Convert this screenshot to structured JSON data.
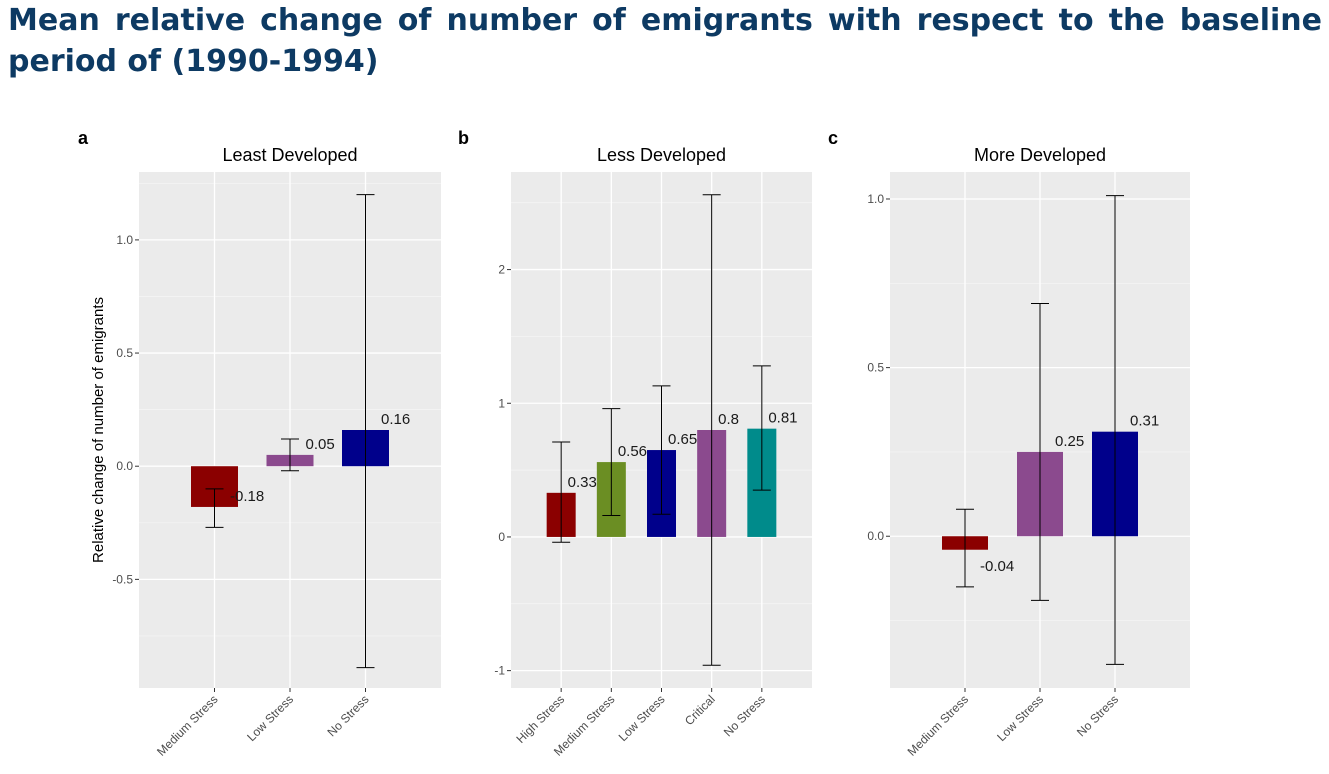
{
  "title": "Mean relative change of number of emigrants with respect to the baseline period of (1990-1994)",
  "chart_data": [
    {
      "type": "bar",
      "panel_tag": "a",
      "title": "Least Developed",
      "ylabel": "Relative change of number of emigrants",
      "xlabel": "",
      "ylim": [
        -0.98,
        1.3
      ],
      "yticks": [
        -0.5,
        0.0,
        0.5,
        1.0
      ],
      "ytick_labels": [
        "-0.5",
        "0.0",
        "0.5",
        "1.0"
      ],
      "grid": true,
      "categories": [
        "Medium Stress",
        "Low Stress",
        "No Stress"
      ],
      "values": [
        -0.18,
        0.05,
        0.16
      ],
      "data_labels": [
        "-0.18",
        "0.05",
        "0.16"
      ],
      "error_low": [
        -0.27,
        -0.02,
        -0.89
      ],
      "error_high": [
        -0.1,
        0.12,
        1.2
      ],
      "colors": [
        "#8b0000",
        "#8b4a8e",
        "#00008b"
      ]
    },
    {
      "type": "bar",
      "panel_tag": "b",
      "title": "Less Developed",
      "ylabel": "",
      "xlabel": "",
      "ylim": [
        -1.13,
        2.73
      ],
      "yticks": [
        -1,
        0,
        1,
        2
      ],
      "ytick_labels": [
        "-1",
        "0",
        "1",
        "2"
      ],
      "grid": true,
      "categories": [
        "High Stress",
        "Medium Stress",
        "Low Stress",
        "Critical",
        "No Stress"
      ],
      "values": [
        0.33,
        0.56,
        0.65,
        0.8,
        0.81
      ],
      "data_labels": [
        "0.33",
        "0.56",
        "0.65",
        "0.8",
        "0.81"
      ],
      "error_low": [
        -0.04,
        0.16,
        0.17,
        -0.96,
        0.35
      ],
      "error_high": [
        0.71,
        0.96,
        1.13,
        2.56,
        1.28
      ],
      "colors": [
        "#8b0000",
        "#6b8e23",
        "#00008b",
        "#8b4a8e",
        "#008b8b"
      ]
    },
    {
      "type": "bar",
      "panel_tag": "c",
      "title": "More Developed",
      "ylabel": "",
      "xlabel": "",
      "ylim": [
        -0.45,
        1.08
      ],
      "yticks": [
        0.0,
        0.5,
        1.0
      ],
      "ytick_labels": [
        "0.0",
        "0.5",
        "1.0"
      ],
      "grid": true,
      "categories": [
        "Medium Stress",
        "Low Stress",
        "No Stress"
      ],
      "values": [
        -0.04,
        0.25,
        0.31
      ],
      "data_labels": [
        "-0.04",
        "0.25",
        "0.31"
      ],
      "error_low": [
        -0.15,
        -0.19,
        -0.38
      ],
      "error_high": [
        0.08,
        0.69,
        1.01
      ],
      "colors": [
        "#8b0000",
        "#8b4a8e",
        "#00008b"
      ]
    }
  ]
}
